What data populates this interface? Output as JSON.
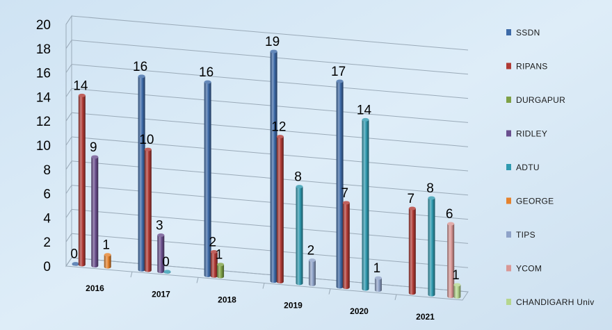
{
  "chart_data": {
    "type": "bar",
    "style": "3d-cylinder",
    "categories": [
      "2016",
      "2017",
      "2018",
      "2019",
      "2020",
      "2021"
    ],
    "series": [
      {
        "name": "SSDN",
        "color": "#3d6aa8",
        "values": [
          0,
          16,
          16,
          19,
          17,
          null
        ]
      },
      {
        "name": "RIPANS",
        "color": "#b03a35",
        "values": [
          14,
          10,
          2,
          12,
          7,
          7
        ]
      },
      {
        "name": "DURGAPUR",
        "color": "#7ea146",
        "values": [
          null,
          null,
          1,
          null,
          null,
          null
        ]
      },
      {
        "name": "RIDLEY",
        "color": "#6a4f8e",
        "values": [
          9,
          3,
          null,
          null,
          null,
          null
        ]
      },
      {
        "name": "ADTU",
        "color": "#2f9ab0",
        "values": [
          null,
          0,
          null,
          8,
          14,
          8
        ]
      },
      {
        "name": "GEORGE",
        "color": "#e5822d",
        "values": [
          1,
          null,
          null,
          null,
          null,
          null
        ]
      },
      {
        "name": "TIPS",
        "color": "#8fa3c9",
        "values": [
          null,
          null,
          null,
          2,
          1,
          null
        ]
      },
      {
        "name": "YCOM",
        "color": "#d99795",
        "values": [
          null,
          null,
          null,
          null,
          null,
          6
        ]
      },
      {
        "name": "CHANDIGARH Univ",
        "color": "#b5d68e",
        "values": [
          null,
          null,
          null,
          null,
          null,
          1
        ]
      }
    ],
    "y_ticks": [
      "0",
      "2",
      "4",
      "6",
      "8",
      "10",
      "12",
      "14",
      "16",
      "18",
      "20"
    ],
    "ylim": [
      0,
      20
    ],
    "grid": true,
    "legend": "right",
    "title": "",
    "xlabel": "",
    "ylabel": ""
  }
}
